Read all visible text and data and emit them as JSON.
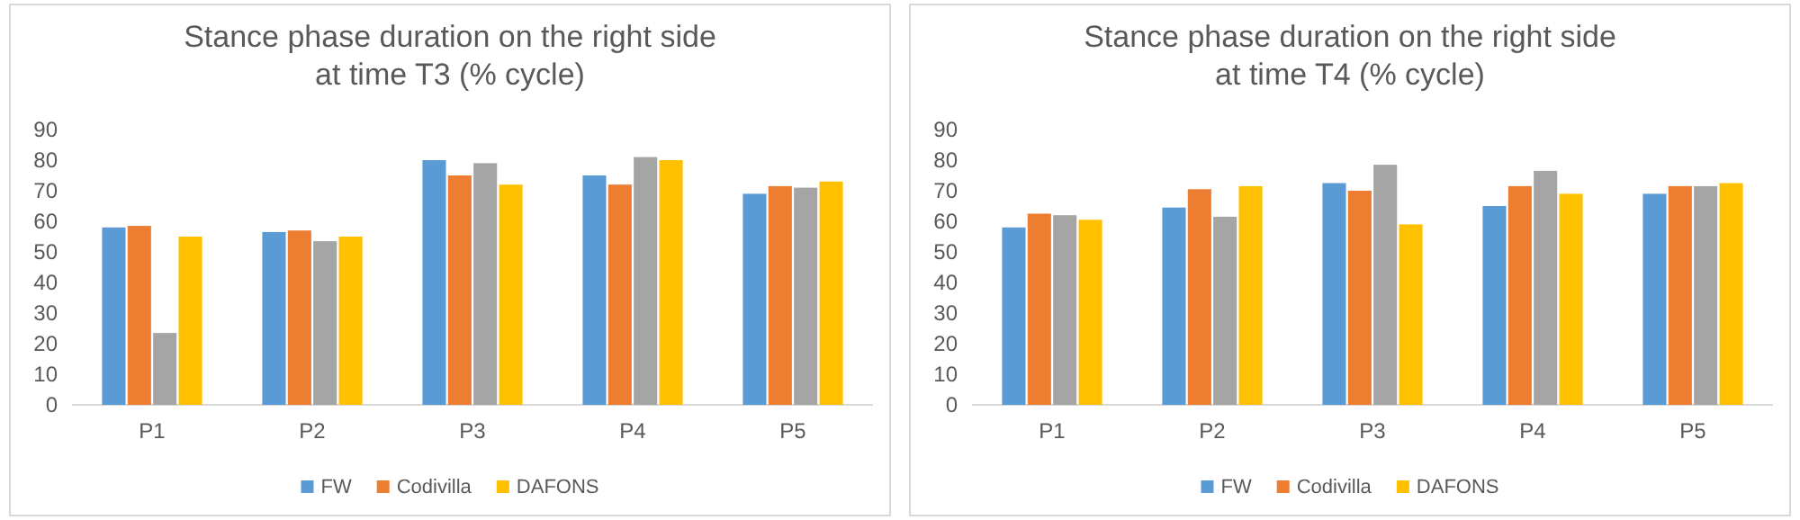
{
  "chart_data": [
    {
      "type": "bar",
      "title": "Stance phase duration on the right side\nat time T3 (% cycle)",
      "categories": [
        "P1",
        "P2",
        "P3",
        "P4",
        "P5"
      ],
      "ylim": [
        0,
        90
      ],
      "yticks": [
        0,
        10,
        20,
        30,
        40,
        50,
        60,
        70,
        80,
        90
      ],
      "grid": false,
      "legend": "bottom",
      "series": [
        {
          "name": "FW",
          "color": "#5b9bd5",
          "values": [
            58,
            56.5,
            80,
            75,
            69
          ]
        },
        {
          "name": "Codivilla",
          "color": "#ed7d31",
          "values": [
            58.5,
            57,
            75,
            72,
            71.5
          ]
        },
        {
          "color": "#a5a5a5",
          "values": [
            23.5,
            53.5,
            79,
            81,
            71
          ]
        },
        {
          "name": "DAFONS",
          "color": "#ffc000",
          "values": [
            55,
            55,
            72,
            80,
            73
          ]
        }
      ]
    },
    {
      "type": "bar",
      "title": "Stance phase duration on the right side\nat time T4 (% cycle)",
      "categories": [
        "P1",
        "P2",
        "P3",
        "P4",
        "P5"
      ],
      "ylim": [
        0,
        90
      ],
      "yticks": [
        0,
        10,
        20,
        30,
        40,
        50,
        60,
        70,
        80,
        90
      ],
      "grid": false,
      "legend": "bottom",
      "series": [
        {
          "name": "FW",
          "color": "#5b9bd5",
          "values": [
            58,
            64.5,
            72.5,
            65,
            69
          ]
        },
        {
          "name": "Codivilla",
          "color": "#ed7d31",
          "values": [
            62.5,
            70.5,
            70,
            71.5,
            71.5
          ]
        },
        {
          "color": "#a5a5a5",
          "values": [
            62,
            61.5,
            78.5,
            76.5,
            71.5
          ]
        },
        {
          "name": "DAFONS",
          "color": "#ffc000",
          "values": [
            60.5,
            71.5,
            59,
            69,
            72.5
          ]
        }
      ]
    }
  ]
}
